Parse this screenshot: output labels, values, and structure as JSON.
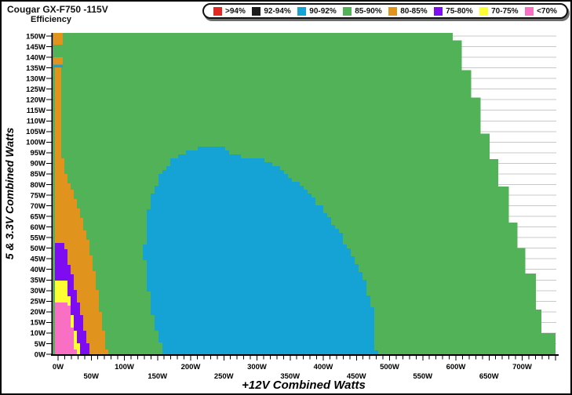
{
  "title": "Cougar GX-F750 -115V",
  "subtitle": "Efficiency",
  "colors": {
    "red": "#e12823",
    "black": "#1b1b1b",
    "blue": "#14a3d4",
    "green": "#52b257",
    "orange": "#e0941e",
    "purple": "#7d0cf0",
    "yellow": "#feff33",
    "pink": "#f96fc4",
    "grid": "#c8c8c8",
    "axis": "#000000"
  },
  "legend": {
    "items": [
      {
        "label": ">94%",
        "color": "red"
      },
      {
        "label": "92-94%",
        "color": "black"
      },
      {
        "label": "90-92%",
        "color": "blue"
      },
      {
        "label": "85-90%",
        "color": "green"
      },
      {
        "label": "80-85%",
        "color": "orange"
      },
      {
        "label": "75-80%",
        "color": "purple"
      },
      {
        "label": "70-75%",
        "color": "yellow"
      },
      {
        "label": "<70%",
        "color": "pink"
      }
    ]
  },
  "chart_data": {
    "type": "heatmap",
    "title": "Cougar GX-F750 -115V Efficiency",
    "xlabel": "+12V Combined Watts",
    "ylabel": "5 & 3.3V Combined Watts",
    "xlim": [
      0,
      755
    ],
    "ylim": [
      0,
      150
    ],
    "x_major_tick_step": 50,
    "x_minor_tick_step": 10,
    "y_tick_step": 5,
    "grid": "horizontal, every 5W",
    "legend_position": "top-right",
    "x_tick_labels": [
      "0W",
      "50W",
      "100W",
      "150W",
      "200W",
      "250W",
      "300W",
      "350W",
      "400W",
      "450W",
      "500W",
      "550W",
      "600W",
      "650W",
      "700W"
    ],
    "y_tick_labels": [
      "0W",
      "5W",
      "10W",
      "15W",
      "20W",
      "25W",
      "30W",
      "35W",
      "40W",
      "45W",
      "50W",
      "55W",
      "60W",
      "65W",
      "70W",
      "75W",
      "80W",
      "85W",
      "90W",
      "95W",
      "100W",
      "105W",
      "110W",
      "115W",
      "120W",
      "125W",
      "130W",
      "135W",
      "140W",
      "145W",
      "150W"
    ],
    "regions": [
      {
        "efficiency": "85-90%",
        "color": "green",
        "grid": 0,
        "points": [
          [
            -7,
            151.5
          ],
          [
            595,
            151.5
          ],
          [
            595,
            148
          ],
          [
            609,
            148
          ],
          [
            609,
            134
          ],
          [
            623,
            134
          ],
          [
            623,
            121
          ],
          [
            637,
            121
          ],
          [
            637,
            104
          ],
          [
            651,
            104
          ],
          [
            651,
            92
          ],
          [
            664,
            92
          ],
          [
            664,
            79
          ],
          [
            680,
            79
          ],
          [
            680,
            62
          ],
          [
            693,
            62
          ],
          [
            693,
            50
          ],
          [
            705,
            50
          ],
          [
            705,
            38
          ],
          [
            721,
            38
          ],
          [
            721,
            21
          ],
          [
            729,
            21
          ],
          [
            729,
            10
          ],
          [
            750,
            10
          ],
          [
            750,
            0
          ],
          [
            -7,
            0
          ]
        ]
      },
      {
        "efficiency": "80-85%",
        "color": "orange",
        "grid": 4,
        "points": [
          [
            -7,
            135.3
          ],
          [
            2.5,
            135.3
          ],
          [
            2.5,
            115
          ],
          [
            3,
            105
          ],
          [
            5,
            95
          ],
          [
            9,
            88
          ],
          [
            16,
            81
          ],
          [
            22,
            76
          ],
          [
            28,
            71
          ],
          [
            34,
            65
          ],
          [
            40,
            59
          ],
          [
            46,
            52
          ],
          [
            52,
            43
          ],
          [
            58,
            32
          ],
          [
            66,
            16
          ],
          [
            75,
            0
          ],
          [
            48.5,
            0
          ],
          [
            38,
            14
          ],
          [
            26,
            30
          ],
          [
            15,
            44
          ],
          [
            9,
            52
          ],
          [
            -7,
            52
          ]
        ]
      },
      {
        "efficiency": "80-85%",
        "color": "orange",
        "grid": 0,
        "points": [
          [
            -7,
            146
          ],
          [
            7,
            146
          ],
          [
            7,
            151.5
          ],
          [
            -7,
            151.5
          ]
        ]
      },
      {
        "efficiency": "80-85%",
        "color": "orange",
        "grid": 0,
        "points": [
          [
            -7,
            136.6
          ],
          [
            7,
            136.6
          ],
          [
            7,
            140
          ],
          [
            -7,
            140
          ]
        ]
      },
      {
        "efficiency": "90-92%",
        "color": "blue",
        "grid": 0,
        "points": [
          [
            -7,
            135.2
          ],
          [
            7,
            135.2
          ],
          [
            7,
            136.6
          ],
          [
            -7,
            136.6
          ]
        ]
      },
      {
        "efficiency": "75-80%",
        "color": "purple",
        "grid": 4,
        "points": [
          [
            -7,
            52
          ],
          [
            9,
            52
          ],
          [
            15,
            44
          ],
          [
            26,
            30
          ],
          [
            38,
            14
          ],
          [
            48.5,
            0
          ],
          [
            34,
            0
          ],
          [
            24,
            14
          ],
          [
            11,
            34
          ],
          [
            -7,
            34
          ]
        ]
      },
      {
        "efficiency": "70-75%",
        "color": "yellow",
        "grid": 4,
        "points": [
          [
            -7,
            34
          ],
          [
            11,
            34
          ],
          [
            24,
            14
          ],
          [
            34,
            0
          ],
          [
            27,
            0
          ],
          [
            15,
            25
          ],
          [
            -7,
            25
          ]
        ]
      },
      {
        "efficiency": "<70%",
        "color": "pink",
        "grid": 4,
        "points": [
          [
            -7,
            25
          ],
          [
            15,
            25
          ],
          [
            27,
            0
          ],
          [
            -7,
            0
          ]
        ]
      },
      {
        "efficiency": "90-92%",
        "color": "blue",
        "grid": 5,
        "points": [
          [
            160,
            0
          ],
          [
            149,
            12
          ],
          [
            140,
            24
          ],
          [
            133,
            36
          ],
          [
            130,
            48
          ],
          [
            132,
            60
          ],
          [
            138,
            71
          ],
          [
            147,
            80
          ],
          [
            158,
            87
          ],
          [
            172,
            92
          ],
          [
            190,
            95
          ],
          [
            210,
            97
          ],
          [
            252,
            97
          ],
          [
            257,
            94
          ],
          [
            282,
            93
          ],
          [
            305,
            92
          ],
          [
            328,
            88
          ],
          [
            350,
            83
          ],
          [
            370,
            78
          ],
          [
            390,
            71
          ],
          [
            408,
            64
          ],
          [
            422,
            58
          ],
          [
            434,
            51
          ],
          [
            446,
            44
          ],
          [
            457,
            37
          ],
          [
            466,
            30
          ],
          [
            473,
            22
          ],
          [
            478,
            13
          ],
          [
            480,
            0
          ]
        ]
      }
    ]
  }
}
